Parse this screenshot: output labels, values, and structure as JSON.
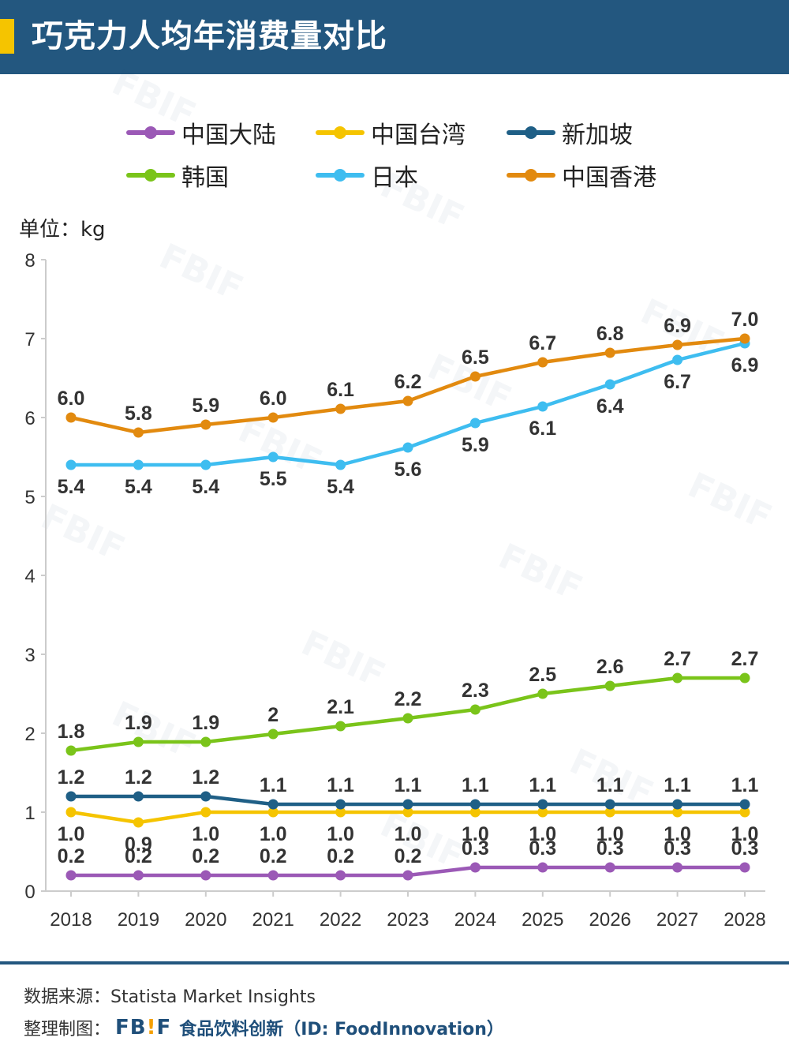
{
  "header": {
    "title": "巧克力人均年消费量对比",
    "accent_color": "#f5c400",
    "bg_color": "#23577f"
  },
  "unit_label": "单位：kg",
  "chart_data": {
    "type": "line",
    "title": "巧克力人均年消费量对比",
    "xlabel": "",
    "ylabel": "单位：kg",
    "ylim": [
      0,
      8
    ],
    "yticks": [
      "0",
      "1",
      "2",
      "3",
      "4",
      "5",
      "6",
      "7",
      "8"
    ],
    "categories": [
      "2018",
      "2019",
      "2020",
      "2021",
      "2022",
      "2023",
      "2024",
      "2025",
      "2026",
      "2027",
      "2028"
    ],
    "legend_position": "top",
    "series": [
      {
        "name": "中国大陆",
        "color": "#9b59b6",
        "values": [
          0.2,
          0.2,
          0.2,
          0.2,
          0.2,
          0.2,
          0.3,
          0.3,
          0.3,
          0.3,
          0.3
        ],
        "labels": [
          "0.2",
          "0.2",
          "0.2",
          "0.2",
          "0.2",
          "0.2",
          "0.3",
          "0.3",
          "0.3",
          "0.3",
          "0.3"
        ],
        "label_pos": "above"
      },
      {
        "name": "中国台湾",
        "color": "#f5c400",
        "values": [
          1.0,
          0.87,
          1.0,
          1.0,
          1.0,
          1.0,
          1.0,
          1.0,
          1.0,
          1.0,
          1.0
        ],
        "labels": [
          "1.0",
          "0.9",
          "1.0",
          "1.0",
          "1.0",
          "1.0",
          "1.0",
          "1.0",
          "1.0",
          "1.0",
          "1.0"
        ],
        "label_pos": "below"
      },
      {
        "name": "新加坡",
        "color": "#1f5f86",
        "values": [
          1.2,
          1.2,
          1.2,
          1.1,
          1.1,
          1.1,
          1.1,
          1.1,
          1.1,
          1.1,
          1.1
        ],
        "labels": [
          "1.2",
          "1.2",
          "1.2",
          "1.1",
          "1.1",
          "1.1",
          "1.1",
          "1.1",
          "1.1",
          "1.1",
          "1.1"
        ],
        "label_pos": "above"
      },
      {
        "name": "韩国",
        "color": "#7ac41a",
        "values": [
          1.78,
          1.89,
          1.89,
          1.99,
          2.09,
          2.19,
          2.3,
          2.5,
          2.6,
          2.7,
          2.7
        ],
        "labels": [
          "1.8",
          "1.9",
          "1.9",
          "2",
          "2.1",
          "2.2",
          "2.3",
          "2.5",
          "2.6",
          "2.7",
          "2.7"
        ],
        "label_pos": "above"
      },
      {
        "name": "日本",
        "color": "#3ebdf0",
        "values": [
          5.4,
          5.4,
          5.4,
          5.5,
          5.4,
          5.62,
          5.93,
          6.14,
          6.42,
          6.73,
          6.94
        ],
        "labels": [
          "5.4",
          "5.4",
          "5.4",
          "5.5",
          "5.4",
          "5.6",
          "5.9",
          "6.1",
          "6.4",
          "6.7",
          "6.9"
        ],
        "label_pos": "below"
      },
      {
        "name": "中国香港",
        "color": "#e28a0f",
        "values": [
          6.0,
          5.81,
          5.91,
          6.0,
          6.11,
          6.21,
          6.52,
          6.7,
          6.82,
          6.92,
          7.0
        ],
        "labels": [
          "6.0",
          "5.8",
          "5.9",
          "6.0",
          "6.1",
          "6.2",
          "6.5",
          "6.7",
          "6.8",
          "6.9",
          "7.0"
        ],
        "label_pos": "above"
      }
    ]
  },
  "footer": {
    "source_label": "数据来源：Statista Market Insights",
    "maker_label": "整理制图：",
    "logo_text_1": "FB",
    "logo_bang": "!",
    "logo_text_2": "F",
    "brand_text": "食品饮料创新（ID: FoodInnovation）"
  }
}
